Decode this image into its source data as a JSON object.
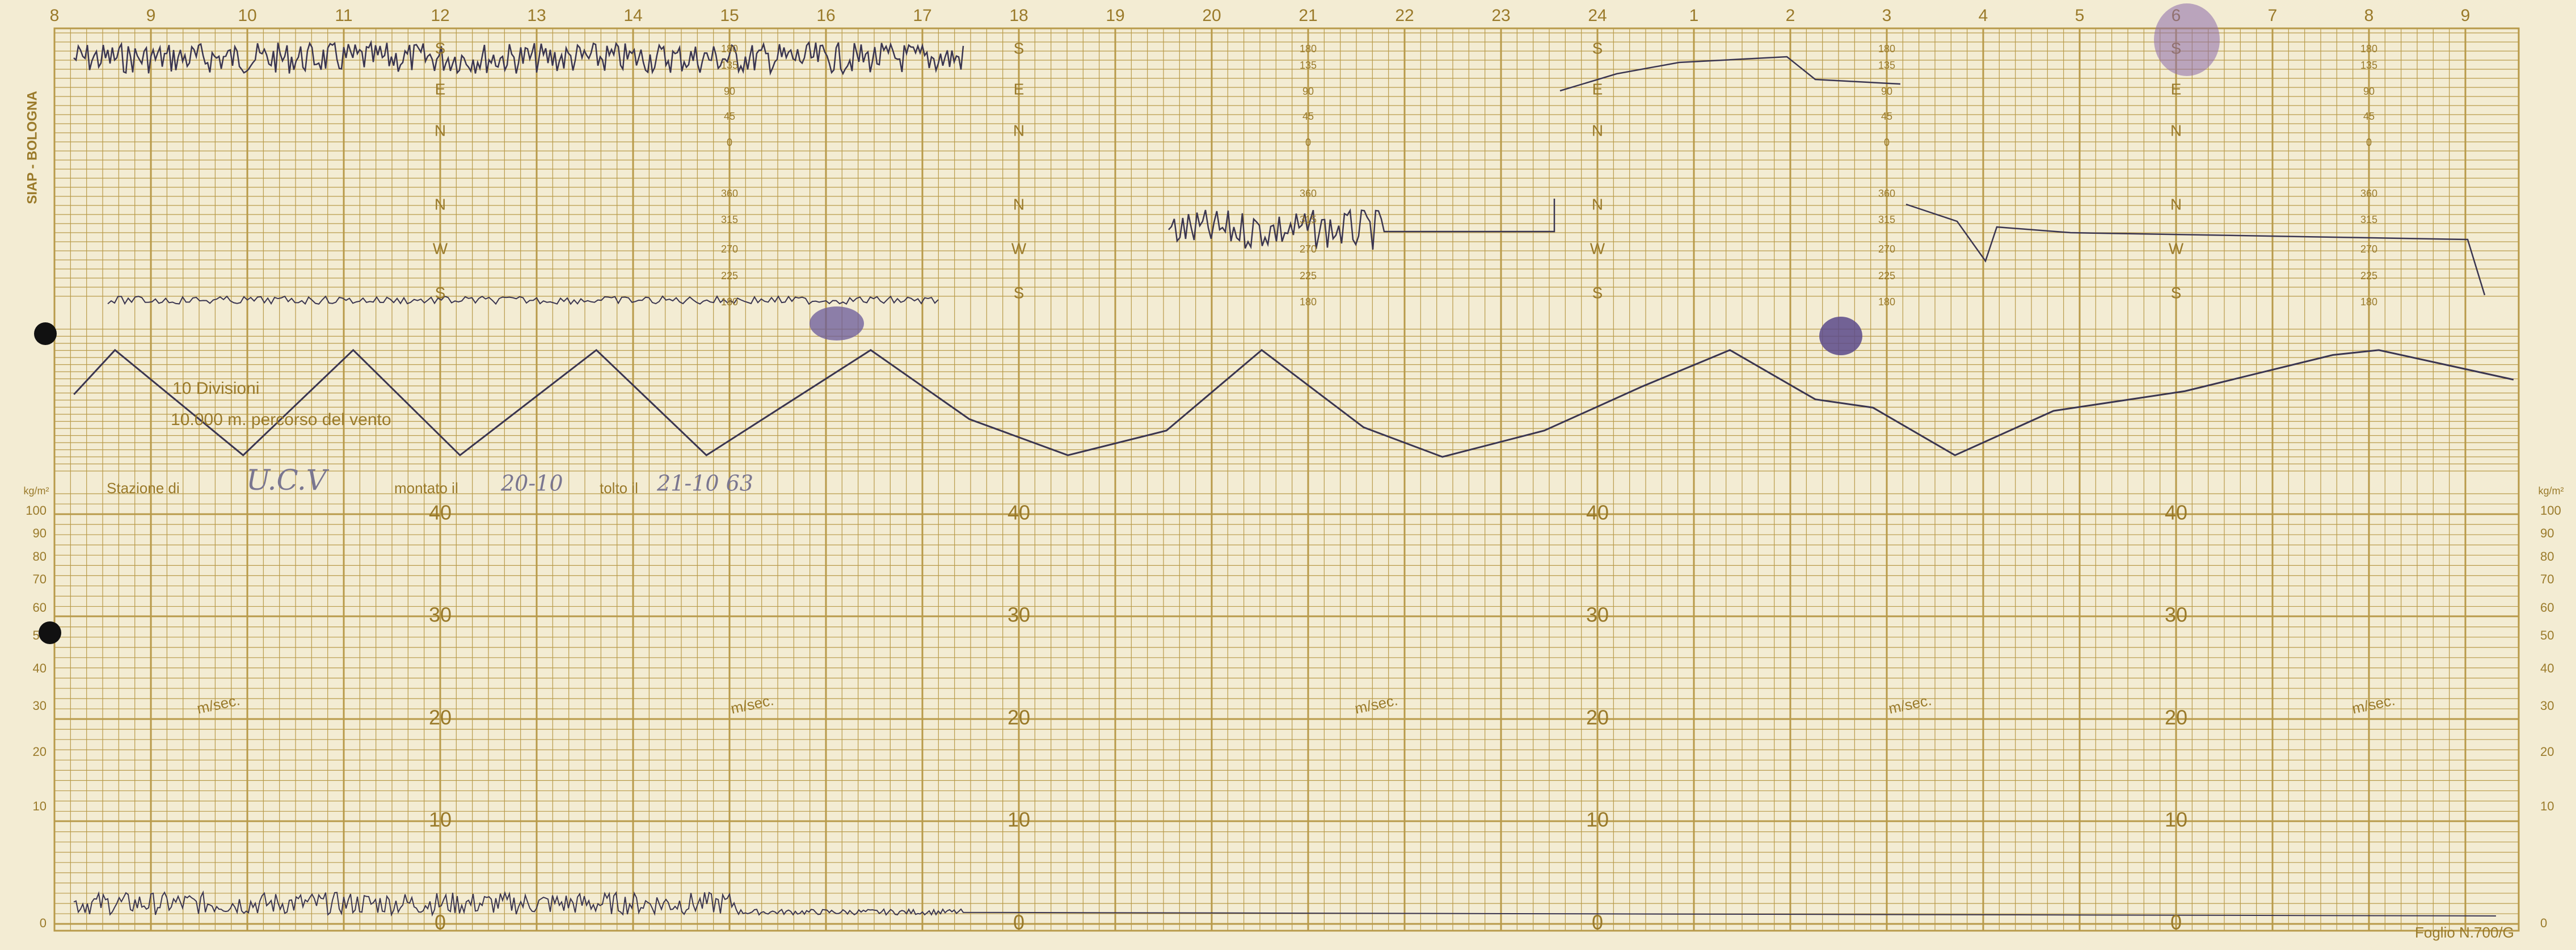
{
  "hours": [
    "8",
    "9",
    "10",
    "11",
    "12",
    "13",
    "14",
    "15",
    "16",
    "17",
    "18",
    "19",
    "20",
    "21",
    "22",
    "23",
    "24",
    "1",
    "2",
    "3",
    "4",
    "5",
    "6",
    "7",
    "8",
    "9"
  ],
  "side_label": "SIAP - BOLOGNA",
  "direction_degrees_upper": [
    "180",
    "135",
    "90",
    "45",
    "0"
  ],
  "direction_degrees_lower": [
    "360",
    "315",
    "270",
    "225",
    "180"
  ],
  "direction_letters": [
    "S",
    "E",
    "N",
    "N",
    "W",
    "S"
  ],
  "distance_note": [
    "10 Divisioni",
    "10.000 m. percorso del vento"
  ],
  "station": {
    "label": "Stazione di",
    "value": "U.C.V",
    "mounted_label": "montato il",
    "mounted": "20-10",
    "removed_label": "tolto il",
    "removed": "21-10 63"
  },
  "pressure_unit": "kg/m²",
  "pressure_scale": [
    "100",
    "90",
    "80",
    "70",
    "60",
    "50",
    "40",
    "30",
    "20",
    "10",
    "0"
  ],
  "speed_scale": [
    "40",
    "30",
    "20",
    "10",
    "0"
  ],
  "speed_unit": "m/sec.",
  "form": "Foglio N.700/G"
}
